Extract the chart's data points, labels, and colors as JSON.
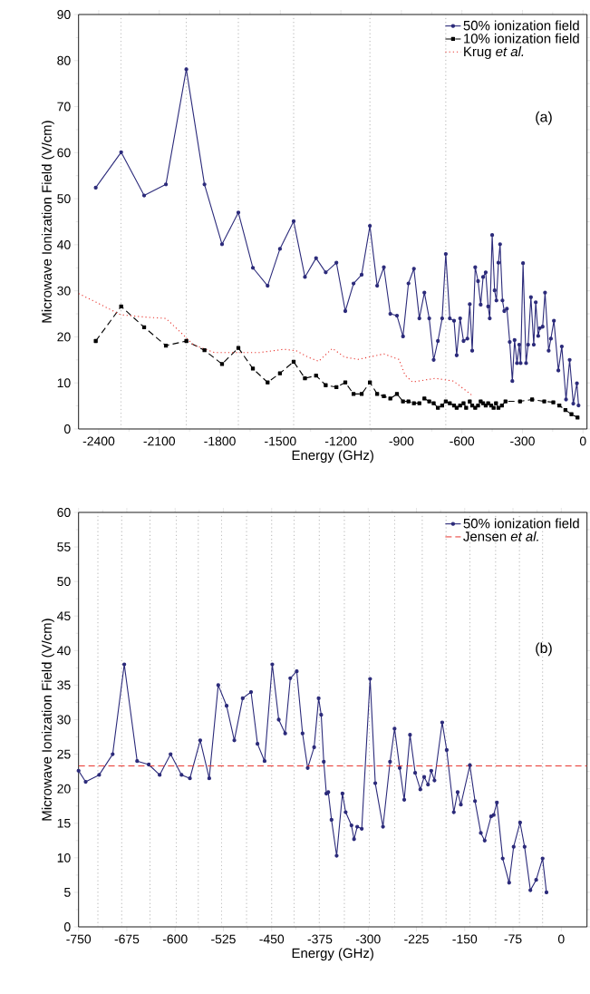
{
  "chart_data": [
    {
      "type": "line",
      "xlabel": "Energy (GHz)",
      "ylabel": "Microwave Ionization Field (V/cm)",
      "xlim": [
        -2500,
        20
      ],
      "ylim": [
        0,
        90
      ],
      "xticks": [
        -2400,
        -2100,
        -1800,
        -1500,
        -1200,
        -900,
        -600,
        -300,
        0
      ],
      "yticks": [
        0,
        10,
        20,
        30,
        40,
        50,
        60,
        70,
        80,
        90
      ],
      "legend": "top right",
      "annotations": [
        "(a)"
      ],
      "series": [
        {
          "name": "50% ionization field",
          "color": "#2b2a7a",
          "marker": "circle",
          "line_style": "solid",
          "x": [
            -2415,
            -2289,
            -2175,
            -2067,
            -1966,
            -1876,
            -1789,
            -1708,
            -1636,
            -1563,
            -1502,
            -1434,
            -1378,
            -1323,
            -1275,
            -1222,
            -1178,
            -1137,
            -1097,
            -1056,
            -1020,
            -987,
            -955,
            -922,
            -892,
            -865,
            -838,
            -811,
            -786,
            -762,
            -740,
            -719,
            -698,
            -680,
            -660,
            -639,
            -626,
            -609,
            -592,
            -573,
            -561,
            -549,
            -534,
            -520,
            -507,
            -495,
            -482,
            -470,
            -462,
            -450,
            -438,
            -429,
            -419,
            -411,
            -399,
            -390,
            -377,
            -363,
            -350,
            -339,
            -327,
            -316,
            -309,
            -297,
            -282,
            -272,
            -258,
            -244,
            -234,
            -222,
            -214,
            -200,
            -188,
            -170,
            -159,
            -144,
            -122,
            -105,
            -84,
            -66,
            -48,
            -30,
            -22
          ],
          "values": [
            52.4,
            60.1,
            50.7,
            53.1,
            78.1,
            53.1,
            40.1,
            47.0,
            35.0,
            31.1,
            39.1,
            45.1,
            33.0,
            37.1,
            34.0,
            36.1,
            25.6,
            31.6,
            33.5,
            44.1,
            31.1,
            35.1,
            25.0,
            24.6,
            20.1,
            31.6,
            34.8,
            24.0,
            29.6,
            24.0,
            15.0,
            19.1,
            24.0,
            38.0,
            24.0,
            23.5,
            16.0,
            24.0,
            19.1,
            19.6,
            27.1,
            17.0,
            35.1,
            32.1,
            27.0,
            33.0,
            34.0,
            26.6,
            24.0,
            42.1,
            30.1,
            27.9,
            36.1,
            40.1,
            27.9,
            25.6,
            26.1,
            18.9,
            10.4,
            19.3,
            14.3,
            18.3,
            14.3,
            36.0,
            14.3,
            18.3,
            28.6,
            18.3,
            27.5,
            20.2,
            21.9,
            22.2,
            29.6,
            17.0,
            19.6,
            23.5,
            12.7,
            17.9,
            6.4,
            15.0,
            5.5,
            9.9,
            5.1
          ]
        },
        {
          "name": "10% ionization field",
          "color": "#000000",
          "marker": "square",
          "line_style": "dashed",
          "x": [
            -2415,
            -2289,
            -2175,
            -2067,
            -1966,
            -1876,
            -1789,
            -1708,
            -1636,
            -1563,
            -1502,
            -1434,
            -1378,
            -1323,
            -1275,
            -1222,
            -1178,
            -1137,
            -1097,
            -1056,
            -1020,
            -987,
            -955,
            -922,
            -892,
            -865,
            -838,
            -811,
            -786,
            -762,
            -740,
            -719,
            -698,
            -680,
            -660,
            -639,
            -626,
            -609,
            -592,
            -579,
            -561,
            -549,
            -534,
            -520,
            -507,
            -495,
            -482,
            -470,
            -455,
            -443,
            -431,
            -419,
            -402,
            -384,
            -312,
            -252,
            -192,
            -147,
            -117,
            -87,
            -57,
            -27
          ],
          "values": [
            19.1,
            26.6,
            22.1,
            18.1,
            19.1,
            17.1,
            14.1,
            17.6,
            13.1,
            10.1,
            12.1,
            14.6,
            11.0,
            11.6,
            9.5,
            9.1,
            10.1,
            7.6,
            7.6,
            10.1,
            7.6,
            7.1,
            6.6,
            7.6,
            6.0,
            6.0,
            5.6,
            5.6,
            6.6,
            6.0,
            5.6,
            4.6,
            5.1,
            6.0,
            5.6,
            5.1,
            4.6,
            5.1,
            5.6,
            4.6,
            6.0,
            5.1,
            4.6,
            5.1,
            6.0,
            5.6,
            5.1,
            5.6,
            5.1,
            4.6,
            5.6,
            4.6,
            5.1,
            6.0,
            6.0,
            6.4,
            6.0,
            5.8,
            5.1,
            4.1,
            3.2,
            2.5
          ]
        },
        {
          "name": "Krug *et al.*",
          "color": "#e8352e",
          "marker": "none",
          "line_style": "dotted",
          "x": [
            -2500,
            -2412,
            -2292,
            -2172,
            -2067,
            -1992,
            -1932,
            -1827,
            -1722,
            -1602,
            -1482,
            -1422,
            -1362,
            -1310,
            -1242,
            -1182,
            -1115,
            -987,
            -912,
            -882,
            -845,
            -732,
            -642,
            -582,
            -544
          ],
          "values": [
            29.4,
            27.5,
            24.8,
            24.3,
            24.0,
            20.9,
            18.3,
            16.6,
            16.6,
            16.6,
            17.3,
            17.0,
            15.6,
            14.7,
            17.5,
            15.6,
            15.1,
            16.3,
            15.1,
            11.7,
            10.2,
            11.0,
            10.4,
            8.4,
            7.1
          ]
        }
      ],
      "ref_lines": [
        {
          "axis": "x",
          "value": -2289,
          "color": "#808080",
          "line_style": "dotted"
        },
        {
          "axis": "x",
          "value": -1966,
          "color": "#808080",
          "line_style": "dotted"
        },
        {
          "axis": "x",
          "value": -1708,
          "color": "#808080",
          "line_style": "dotted"
        },
        {
          "axis": "x",
          "value": -1434,
          "color": "#808080",
          "line_style": "dotted"
        },
        {
          "axis": "x",
          "value": -1056,
          "color": "#808080",
          "line_style": "dotted"
        },
        {
          "axis": "x",
          "value": -680,
          "color": "#808080",
          "line_style": "dotted"
        }
      ]
    },
    {
      "type": "line",
      "xlabel": "Energy (GHz)",
      "ylabel": "Microwave Ionization Field (V/cm)",
      "xlim": [
        -750,
        40
      ],
      "ylim": [
        0,
        60
      ],
      "xticks": [
        -750,
        -675,
        -600,
        -525,
        -450,
        -375,
        -300,
        -225,
        -150,
        -75,
        0
      ],
      "yticks": [
        0,
        5,
        10,
        15,
        20,
        25,
        30,
        35,
        40,
        45,
        50,
        55,
        60
      ],
      "legend": "top right",
      "annotations": [
        "(b)"
      ],
      "series": [
        {
          "name": "50% ionization field",
          "color": "#2b2a7a",
          "marker": "circle",
          "line_style": "solid",
          "x": [
            -750,
            -739,
            -718,
            -697,
            -679,
            -659,
            -641,
            -624,
            -607,
            -590,
            -577,
            -561,
            -547,
            -533,
            -520,
            -508,
            -495,
            -482,
            -472,
            -461,
            -449,
            -439,
            -429,
            -421,
            -411,
            -402,
            -394,
            -384,
            -377,
            -373,
            -369,
            -365,
            -362,
            -357,
            -349,
            -340,
            -335,
            -326,
            -322,
            -317,
            -310,
            -297,
            -289,
            -277,
            -266,
            -259,
            -251,
            -244,
            -235,
            -227,
            -219,
            -213,
            -207,
            -202,
            -197,
            -185,
            -178,
            -167,
            -161,
            -156,
            -142,
            -134,
            -125,
            -119,
            -109,
            -105,
            -100,
            -91,
            -81,
            -74,
            -64,
            -57,
            -48,
            -39,
            -29,
            -23
          ],
          "values": [
            22.6,
            21.0,
            22.0,
            25.0,
            38.0,
            24.0,
            23.5,
            22.0,
            25.0,
            22.0,
            21.5,
            27.0,
            21.5,
            35.0,
            32.0,
            27.0,
            33.1,
            34.0,
            26.5,
            24.0,
            38.0,
            30.0,
            28.0,
            36.0,
            37.0,
            28.0,
            23.0,
            26.0,
            33.1,
            30.7,
            23.9,
            19.3,
            19.5,
            15.5,
            10.3,
            19.3,
            16.6,
            14.7,
            12.7,
            14.5,
            14.2,
            35.9,
            20.8,
            14.5,
            23.9,
            28.7,
            23.0,
            18.4,
            27.8,
            22.3,
            19.9,
            21.7,
            20.6,
            22.6,
            21.2,
            29.6,
            25.6,
            16.6,
            19.5,
            17.7,
            23.4,
            18.2,
            13.6,
            12.5,
            16.0,
            16.2,
            18.0,
            9.9,
            6.4,
            11.6,
            15.1,
            11.6,
            5.3,
            6.8,
            9.9,
            5.0
          ]
        }
      ],
      "ref_lines": [
        {
          "axis": "y",
          "value": 23.3,
          "label": "Jensen *et al.*",
          "color": "#e8352e",
          "line_style": "dashed"
        },
        {
          "axis": "x",
          "value": -720,
          "color": "#808080",
          "line_style": "dotted"
        },
        {
          "axis": "x",
          "value": -683,
          "color": "#808080",
          "line_style": "dotted"
        },
        {
          "axis": "x",
          "value": -639,
          "color": "#808080",
          "line_style": "dotted"
        },
        {
          "axis": "x",
          "value": -598,
          "color": "#808080",
          "line_style": "dotted"
        },
        {
          "axis": "x",
          "value": -564,
          "color": "#808080",
          "line_style": "dotted"
        },
        {
          "axis": "x",
          "value": -528,
          "color": "#808080",
          "line_style": "dotted"
        },
        {
          "axis": "x",
          "value": -489,
          "color": "#808080",
          "line_style": "dotted"
        },
        {
          "axis": "x",
          "value": -450,
          "color": "#808080",
          "line_style": "dotted"
        },
        {
          "axis": "x",
          "value": -415,
          "color": "#808080",
          "line_style": "dotted"
        },
        {
          "axis": "x",
          "value": -376,
          "color": "#808080",
          "line_style": "dotted"
        },
        {
          "axis": "x",
          "value": -337,
          "color": "#808080",
          "line_style": "dotted"
        },
        {
          "axis": "x",
          "value": -298,
          "color": "#808080",
          "line_style": "dotted"
        },
        {
          "axis": "x",
          "value": -259,
          "color": "#808080",
          "line_style": "dotted"
        },
        {
          "axis": "x",
          "value": -216,
          "color": "#808080",
          "line_style": "dotted"
        },
        {
          "axis": "x",
          "value": -179,
          "color": "#808080",
          "line_style": "dotted"
        },
        {
          "axis": "x",
          "value": -142,
          "color": "#808080",
          "line_style": "dotted"
        },
        {
          "axis": "x",
          "value": -102,
          "color": "#808080",
          "line_style": "dotted"
        },
        {
          "axis": "x",
          "value": -65,
          "color": "#808080",
          "line_style": "dotted"
        },
        {
          "axis": "x",
          "value": -29,
          "color": "#808080",
          "line_style": "dotted"
        }
      ]
    }
  ]
}
